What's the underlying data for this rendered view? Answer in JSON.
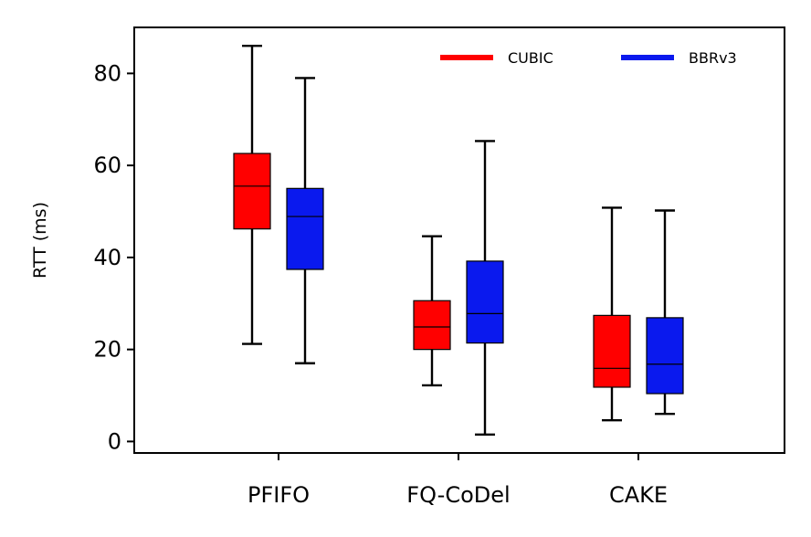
{
  "chart_data": {
    "type": "boxplot",
    "title": "",
    "xlabel": "",
    "ylabel": "RTT (ms)",
    "ylim": [
      -2.5,
      90
    ],
    "yticks": [
      0,
      20,
      40,
      60,
      80
    ],
    "categories": [
      "PFIFO",
      "FQ-CoDel",
      "CAKE"
    ],
    "grid": false,
    "legend_position": "top-right",
    "series": [
      {
        "name": "CUBIC",
        "color": "#ff0000",
        "boxes": [
          {
            "whisker_low": 21.2,
            "q1": 46.2,
            "median": 55.5,
            "q3": 62.6,
            "whisker_high": 86.0
          },
          {
            "whisker_low": 12.2,
            "q1": 20.0,
            "median": 24.9,
            "q3": 30.6,
            "whisker_high": 44.6
          },
          {
            "whisker_low": 4.6,
            "q1": 11.8,
            "median": 15.9,
            "q3": 27.4,
            "whisker_high": 50.8
          }
        ]
      },
      {
        "name": "BBRv3",
        "color": "#0a19ee",
        "boxes": [
          {
            "whisker_low": 17.0,
            "q1": 37.4,
            "median": 48.9,
            "q3": 55.0,
            "whisker_high": 79.0
          },
          {
            "whisker_low": 1.5,
            "q1": 21.4,
            "median": 27.8,
            "q3": 39.2,
            "whisker_high": 65.3
          },
          {
            "whisker_low": 6.0,
            "q1": 10.4,
            "median": 16.8,
            "q3": 26.9,
            "whisker_high": 50.2
          }
        ]
      }
    ]
  }
}
